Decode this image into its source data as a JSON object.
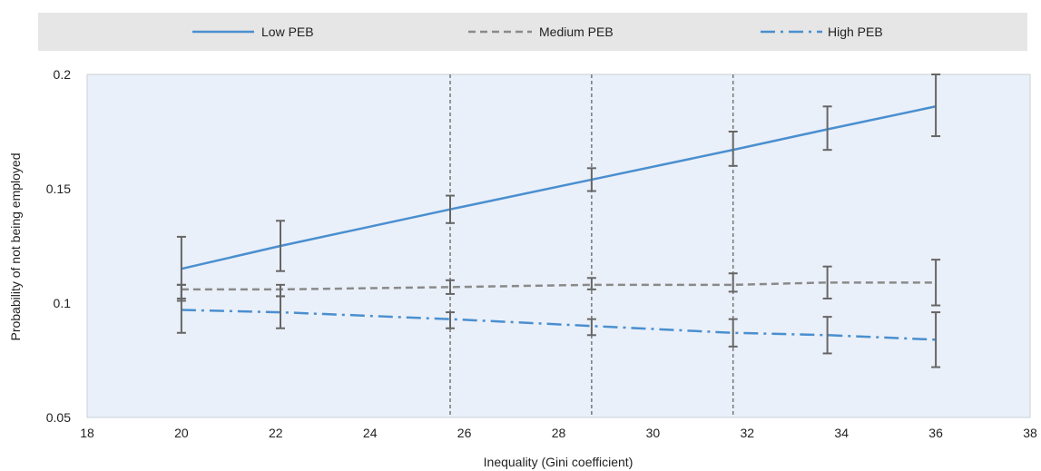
{
  "chart_data": {
    "type": "line",
    "xlabel": "Inequality (Gini coefficient)",
    "ylabel": "Probability of not being employed",
    "xlim": [
      18,
      38
    ],
    "ylim": [
      0.05,
      0.2
    ],
    "x_ticks": [
      "18",
      "20",
      "22",
      "24",
      "26",
      "28",
      "30",
      "32",
      "34",
      "36",
      "38"
    ],
    "y_ticks": [
      "0.05",
      "0.1",
      "0.15",
      "0.2"
    ],
    "grid": false,
    "legend_position": "top",
    "reference_lines_x": [
      25.7,
      28.7,
      31.7
    ],
    "x": [
      20,
      22.1,
      25.7,
      28.7,
      31.7,
      33.7,
      36
    ],
    "series": [
      {
        "name": "Low PEB",
        "style": "solid",
        "color": "#4a8fd0",
        "values": [
          0.115,
          0.125,
          0.141,
          0.154,
          0.167,
          0.176,
          0.186
        ],
        "err_low": [
          0.101,
          0.114,
          0.135,
          0.149,
          0.16,
          0.167,
          0.173
        ],
        "err_high": [
          0.129,
          0.136,
          0.147,
          0.159,
          0.175,
          0.186,
          0.2
        ]
      },
      {
        "name": "Medium PEB",
        "style": "dashed",
        "color": "#8a8a8a",
        "values": [
          0.106,
          0.106,
          0.107,
          0.108,
          0.108,
          0.109,
          0.109
        ],
        "err_low": [
          0.102,
          0.103,
          0.104,
          0.106,
          0.105,
          0.102,
          0.099
        ],
        "err_high": [
          0.108,
          0.108,
          0.11,
          0.111,
          0.113,
          0.116,
          0.119
        ]
      },
      {
        "name": "High PEB",
        "style": "dashdot",
        "color": "#4a8fd0",
        "values": [
          0.097,
          0.096,
          0.093,
          0.09,
          0.087,
          0.086,
          0.084
        ],
        "err_low": [
          0.087,
          0.089,
          0.089,
          0.086,
          0.081,
          0.078,
          0.072
        ],
        "err_high": [
          0.108,
          0.103,
          0.096,
          0.093,
          0.093,
          0.094,
          0.096
        ]
      }
    ]
  }
}
